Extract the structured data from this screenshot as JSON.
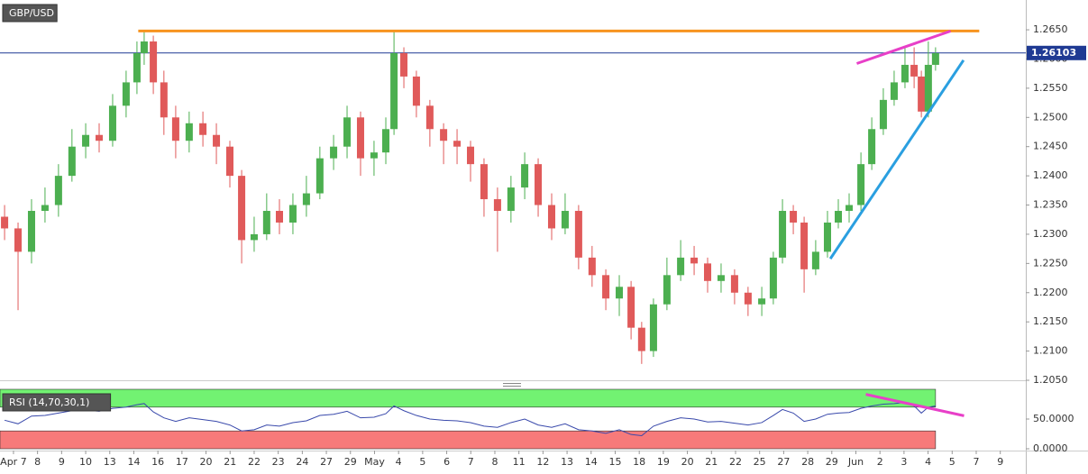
{
  "chart_data": [
    {
      "type": "candlestick",
      "title": "GBP/USD",
      "up_color": "#4caf50",
      "down_color": "#e05a5a",
      "xlim": [
        -0.56,
        42.06
      ],
      "xticks": [
        {
          "value": 0,
          "label": "Apr 7"
        },
        {
          "value": 1,
          "label": "8"
        },
        {
          "value": 2,
          "label": "9"
        },
        {
          "value": 3,
          "label": "10"
        },
        {
          "value": 4,
          "label": "13"
        },
        {
          "value": 5,
          "label": "14"
        },
        {
          "value": 6,
          "label": "16"
        },
        {
          "value": 7,
          "label": "17"
        },
        {
          "value": 8,
          "label": "20"
        },
        {
          "value": 9,
          "label": "21"
        },
        {
          "value": 10,
          "label": "22"
        },
        {
          "value": 11,
          "label": "23"
        },
        {
          "value": 12,
          "label": "24"
        },
        {
          "value": 13,
          "label": "27"
        },
        {
          "value": 14,
          "label": "29"
        },
        {
          "value": 15,
          "label": "May"
        },
        {
          "value": 16,
          "label": "4"
        },
        {
          "value": 17,
          "label": "5"
        },
        {
          "value": 18,
          "label": "6"
        },
        {
          "value": 19,
          "label": "7"
        },
        {
          "value": 20,
          "label": "8"
        },
        {
          "value": 21,
          "label": "11"
        },
        {
          "value": 22,
          "label": "12"
        },
        {
          "value": 23,
          "label": "13"
        },
        {
          "value": 24,
          "label": "14"
        },
        {
          "value": 25,
          "label": "15"
        },
        {
          "value": 26,
          "label": "18"
        },
        {
          "value": 27,
          "label": "19"
        },
        {
          "value": 28,
          "label": "20"
        },
        {
          "value": 29,
          "label": "21"
        },
        {
          "value": 30,
          "label": "22"
        },
        {
          "value": 31,
          "label": "25"
        },
        {
          "value": 32,
          "label": "27"
        },
        {
          "value": 33,
          "label": "28"
        },
        {
          "value": 34,
          "label": "29"
        },
        {
          "value": 35,
          "label": "Jun"
        },
        {
          "value": 36,
          "label": "2"
        },
        {
          "value": 37,
          "label": "3"
        },
        {
          "value": 38,
          "label": "4"
        },
        {
          "value": 39,
          "label": "5"
        },
        {
          "value": 40,
          "label": "7"
        },
        {
          "value": 41,
          "label": "9"
        }
      ],
      "ylim": [
        1.205,
        1.2701
      ],
      "yticks": [
        {
          "value": 1.205,
          "label": "1.2050"
        },
        {
          "value": 1.21,
          "label": "1.2100"
        },
        {
          "value": 1.215,
          "label": "1.2150"
        },
        {
          "value": 1.22,
          "label": "1.2200"
        },
        {
          "value": 1.225,
          "label": "1.2250"
        },
        {
          "value": 1.23,
          "label": "1.2300"
        },
        {
          "value": 1.235,
          "label": "1.2350"
        },
        {
          "value": 1.24,
          "label": "1.2400"
        },
        {
          "value": 1.245,
          "label": "1.2450"
        },
        {
          "value": 1.25,
          "label": "1.2500"
        },
        {
          "value": 1.255,
          "label": "1.2550"
        },
        {
          "value": 1.26,
          "label": "1.2600"
        },
        {
          "value": 1.265,
          "label": "1.2650"
        }
      ],
      "last_price": 1.26103,
      "last_price_color": "#1f3a93",
      "x": [
        -0.37,
        0.19,
        0.75,
        1.31,
        1.87,
        2.43,
        3.0,
        3.56,
        4.12,
        4.68,
        5.13,
        5.43,
        5.81,
        6.25,
        6.74,
        7.3,
        7.87,
        8.43,
        8.99,
        9.48,
        10.0,
        10.52,
        11.05,
        11.61,
        12.17,
        12.73,
        13.3,
        13.86,
        14.42,
        14.98,
        15.47,
        15.81,
        16.22,
        16.74,
        17.3,
        17.87,
        18.43,
        18.99,
        19.55,
        20.11,
        20.67,
        21.24,
        21.8,
        22.36,
        22.92,
        23.48,
        24.04,
        24.61,
        25.17,
        25.66,
        26.1,
        26.59,
        27.15,
        27.72,
        28.28,
        28.84,
        29.4,
        29.96,
        30.52,
        31.09,
        31.57,
        31.95,
        32.4,
        32.85,
        33.33,
        33.82,
        34.27,
        34.72,
        35.21,
        35.66,
        36.14,
        36.59,
        37.04,
        37.42,
        37.72,
        38.01,
        38.31
      ],
      "open": [
        1.233,
        1.231,
        1.227,
        1.234,
        1.235,
        1.24,
        1.245,
        1.247,
        1.246,
        1.252,
        1.256,
        1.261,
        1.263,
        1.256,
        1.25,
        1.246,
        1.249,
        1.247,
        1.245,
        1.24,
        1.229,
        1.23,
        1.234,
        1.232,
        1.235,
        1.237,
        1.243,
        1.245,
        1.25,
        1.243,
        1.244,
        1.248,
        1.261,
        1.257,
        1.252,
        1.248,
        1.246,
        1.245,
        1.242,
        1.236,
        1.234,
        1.238,
        1.242,
        1.235,
        1.231,
        1.234,
        1.226,
        1.223,
        1.219,
        1.221,
        1.214,
        1.21,
        1.218,
        1.223,
        1.226,
        1.225,
        1.222,
        1.223,
        1.22,
        1.218,
        1.219,
        1.226,
        1.234,
        1.232,
        1.224,
        1.227,
        1.232,
        1.234,
        1.235,
        1.242,
        1.248,
        1.253,
        1.256,
        1.259,
        1.257,
        1.251,
        1.259
      ],
      "high": [
        1.235,
        1.232,
        1.236,
        1.238,
        1.242,
        1.248,
        1.249,
        1.249,
        1.254,
        1.258,
        1.263,
        1.2648,
        1.264,
        1.258,
        1.252,
        1.251,
        1.251,
        1.249,
        1.246,
        1.241,
        1.233,
        1.237,
        1.236,
        1.237,
        1.24,
        1.245,
        1.247,
        1.252,
        1.251,
        1.246,
        1.25,
        1.2648,
        1.262,
        1.258,
        1.253,
        1.249,
        1.248,
        1.246,
        1.243,
        1.238,
        1.24,
        1.244,
        1.243,
        1.237,
        1.237,
        1.235,
        1.228,
        1.224,
        1.223,
        1.222,
        1.215,
        1.219,
        1.226,
        1.229,
        1.228,
        1.226,
        1.225,
        1.224,
        1.221,
        1.221,
        1.227,
        1.236,
        1.235,
        1.233,
        1.229,
        1.234,
        1.236,
        1.237,
        1.244,
        1.25,
        1.255,
        1.258,
        1.262,
        1.262,
        1.258,
        1.263,
        1.262
      ],
      "low": [
        1.229,
        1.217,
        1.225,
        1.232,
        1.233,
        1.239,
        1.243,
        1.244,
        1.245,
        1.25,
        1.254,
        1.259,
        1.254,
        1.247,
        1.243,
        1.244,
        1.245,
        1.242,
        1.238,
        1.225,
        1.227,
        1.229,
        1.23,
        1.23,
        1.233,
        1.236,
        1.241,
        1.243,
        1.24,
        1.24,
        1.242,
        1.247,
        1.255,
        1.25,
        1.245,
        1.242,
        1.242,
        1.239,
        1.233,
        1.227,
        1.232,
        1.236,
        1.233,
        1.229,
        1.23,
        1.224,
        1.221,
        1.217,
        1.216,
        1.212,
        1.2078,
        1.209,
        1.217,
        1.222,
        1.223,
        1.22,
        1.22,
        1.218,
        1.216,
        1.216,
        1.218,
        1.225,
        1.23,
        1.22,
        1.223,
        1.226,
        1.231,
        1.232,
        1.234,
        1.241,
        1.247,
        1.252,
        1.255,
        1.255,
        1.25,
        1.25,
        1.258
      ],
      "close": [
        1.231,
        1.227,
        1.234,
        1.235,
        1.24,
        1.245,
        1.247,
        1.246,
        1.252,
        1.256,
        1.261,
        1.263,
        1.256,
        1.25,
        1.246,
        1.249,
        1.247,
        1.245,
        1.24,
        1.229,
        1.23,
        1.234,
        1.232,
        1.235,
        1.237,
        1.243,
        1.245,
        1.25,
        1.243,
        1.244,
        1.248,
        1.261,
        1.257,
        1.252,
        1.248,
        1.246,
        1.245,
        1.242,
        1.236,
        1.234,
        1.238,
        1.242,
        1.235,
        1.231,
        1.234,
        1.226,
        1.223,
        1.219,
        1.221,
        1.214,
        1.21,
        1.218,
        1.223,
        1.226,
        1.225,
        1.222,
        1.223,
        1.22,
        1.218,
        1.219,
        1.226,
        1.234,
        1.232,
        1.224,
        1.227,
        1.232,
        1.234,
        1.235,
        1.242,
        1.248,
        1.253,
        1.256,
        1.259,
        1.257,
        1.251,
        1.259,
        1.261
      ],
      "trendlines": [
        {
          "color": "#f7931e",
          "x": [
            5.24,
            40.07
          ],
          "y": [
            1.2648,
            1.2648
          ]
        },
        {
          "color": "#e83fc8",
          "x": [
            35.09,
            38.88
          ],
          "y": [
            1.2593,
            1.2647
          ]
        },
        {
          "color": "#2a9fe0",
          "x": [
            33.97,
            39.44
          ],
          "y": [
            1.226,
            1.2596
          ]
        }
      ]
    },
    {
      "type": "line",
      "title": "RSI (14,70,30,1)",
      "color": "#3949ab",
      "ylim": [
        0,
        100
      ],
      "yticks": [
        {
          "value": 50,
          "label": "50.0000"
        },
        {
          "value": 0,
          "label": "0.0000"
        }
      ],
      "overbought": 70,
      "oversold": 30,
      "overbought_color": "#72f272",
      "oversold_color": "#f77a7a",
      "x": [
        -0.37,
        0.19,
        0.75,
        1.31,
        1.87,
        2.43,
        3.0,
        3.56,
        4.12,
        4.68,
        5.13,
        5.43,
        5.81,
        6.25,
        6.74,
        7.3,
        7.87,
        8.43,
        8.99,
        9.48,
        10.0,
        10.52,
        11.05,
        11.61,
        12.17,
        12.73,
        13.3,
        13.86,
        14.42,
        14.98,
        15.47,
        15.81,
        16.22,
        16.74,
        17.3,
        17.87,
        18.43,
        18.99,
        19.55,
        20.11,
        20.67,
        21.24,
        21.8,
        22.36,
        22.92,
        23.48,
        24.04,
        24.61,
        25.17,
        25.66,
        26.1,
        26.59,
        27.15,
        27.72,
        28.28,
        28.84,
        29.4,
        29.96,
        30.52,
        31.09,
        31.57,
        31.95,
        32.4,
        32.85,
        33.33,
        33.82,
        34.27,
        34.72,
        35.21,
        35.66,
        36.14,
        36.59,
        37.04,
        37.42,
        37.72,
        38.01,
        38.31
      ],
      "values": [
        48,
        42,
        55,
        56,
        60,
        64,
        65,
        63,
        68,
        70,
        74,
        76,
        62,
        52,
        46,
        52,
        49,
        46,
        40,
        30,
        32,
        40,
        38,
        44,
        47,
        56,
        58,
        63,
        52,
        53,
        59,
        72,
        64,
        56,
        50,
        48,
        47,
        44,
        38,
        36,
        44,
        50,
        40,
        36,
        42,
        32,
        30,
        26,
        32,
        24,
        22,
        38,
        46,
        52,
        50,
        45,
        46,
        43,
        40,
        44,
        56,
        66,
        60,
        46,
        50,
        58,
        60,
        61,
        68,
        72,
        75,
        76,
        78,
        72,
        60,
        70,
        72
      ],
      "trendlines": [
        {
          "color": "#e83fc8",
          "x": [
            35.47,
            39.44
          ],
          "y": [
            91,
            56
          ]
        }
      ]
    }
  ]
}
